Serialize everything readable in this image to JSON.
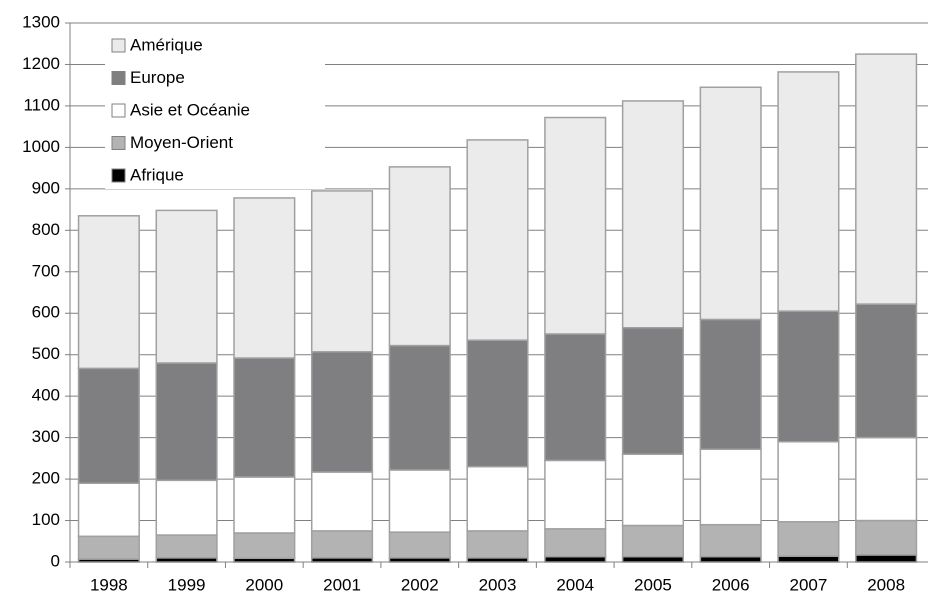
{
  "chart_data": {
    "type": "stacked-bar",
    "categories": [
      "1998",
      "1999",
      "2000",
      "2001",
      "2002",
      "2003",
      "2004",
      "2005",
      "2006",
      "2007",
      "2008"
    ],
    "series": [
      {
        "name": "Afrique",
        "color": "#000000",
        "values": [
          7,
          10,
          9,
          10,
          10,
          10,
          13,
          13,
          13,
          14,
          17
        ]
      },
      {
        "name": "Moyen-Orient",
        "color": "#b3b3b3",
        "values": [
          55,
          55,
          61,
          65,
          62,
          65,
          67,
          75,
          77,
          83,
          83
        ]
      },
      {
        "name": "Asie et Océanie",
        "color": "#ffffff",
        "values": [
          128,
          132,
          135,
          142,
          150,
          155,
          165,
          172,
          182,
          193,
          200
        ]
      },
      {
        "name": "Europe",
        "color": "#7f7f82",
        "values": [
          277,
          283,
          287,
          290,
          300,
          305,
          305,
          305,
          313,
          315,
          322
        ]
      },
      {
        "name": "Amérique",
        "color": "#ebebeb",
        "values": [
          368,
          368,
          386,
          388,
          431,
          483,
          522,
          547,
          560,
          577,
          603
        ]
      }
    ],
    "ylim": [
      0,
      1300
    ],
    "yticks": [
      0,
      100,
      200,
      300,
      400,
      500,
      600,
      700,
      800,
      900,
      1000,
      1100,
      1200,
      1300
    ],
    "grid": true,
    "legend": "top-left"
  }
}
